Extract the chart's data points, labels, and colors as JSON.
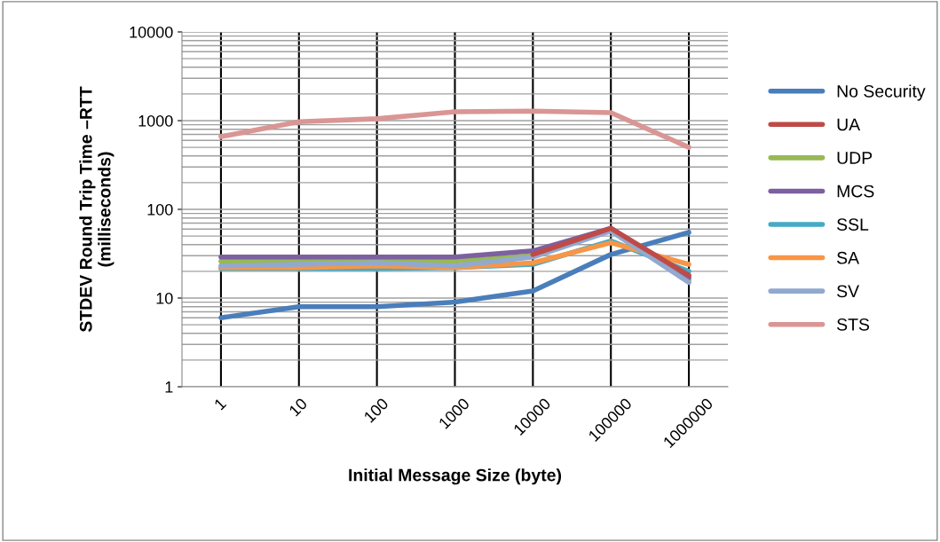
{
  "chart_data": {
    "type": "line",
    "xlabel": "Initial Message Size (byte)",
    "ylabel": "STDEV Round Trip Time –RTT\n(milliseconds)",
    "categories": [
      "1",
      "10",
      "100",
      "1000",
      "10000",
      "100000",
      "1000000"
    ],
    "log": "y",
    "ylim": [
      1,
      10000
    ],
    "yticks": [
      1,
      10,
      100,
      1000,
      10000
    ],
    "grid": true,
    "legend": "right",
    "marker": "none",
    "line_style": "solid",
    "series": [
      {
        "name": "No Security",
        "color": "#4a7ebb",
        "values": [
          6,
          8,
          8,
          9,
          12,
          31,
          55
        ]
      },
      {
        "name": "UA",
        "color": "#be4b48",
        "values": [
          null,
          null,
          null,
          null,
          31,
          61,
          18
        ]
      },
      {
        "name": "UDP",
        "color": "#98b954",
        "values": [
          26,
          26,
          26,
          26,
          30,
          58,
          16
        ]
      },
      {
        "name": "MCS",
        "color": "#7d60a0",
        "values": [
          29,
          29,
          29,
          29,
          34,
          61,
          17
        ]
      },
      {
        "name": "SSL",
        "color": "#46aac5",
        "values": [
          21.5,
          21.5,
          21.5,
          22,
          24,
          44,
          20
        ]
      },
      {
        "name": "SA",
        "color": "#f79646",
        "values": [
          22,
          22,
          23,
          22,
          25,
          42,
          24
        ]
      },
      {
        "name": "SV",
        "color": "#92a9cf",
        "values": [
          23,
          24,
          25,
          23,
          29,
          57,
          15
        ]
      },
      {
        "name": "STS",
        "color": "#d99694",
        "values": [
          660,
          970,
          1050,
          1260,
          1280,
          1230,
          500
        ]
      }
    ]
  }
}
